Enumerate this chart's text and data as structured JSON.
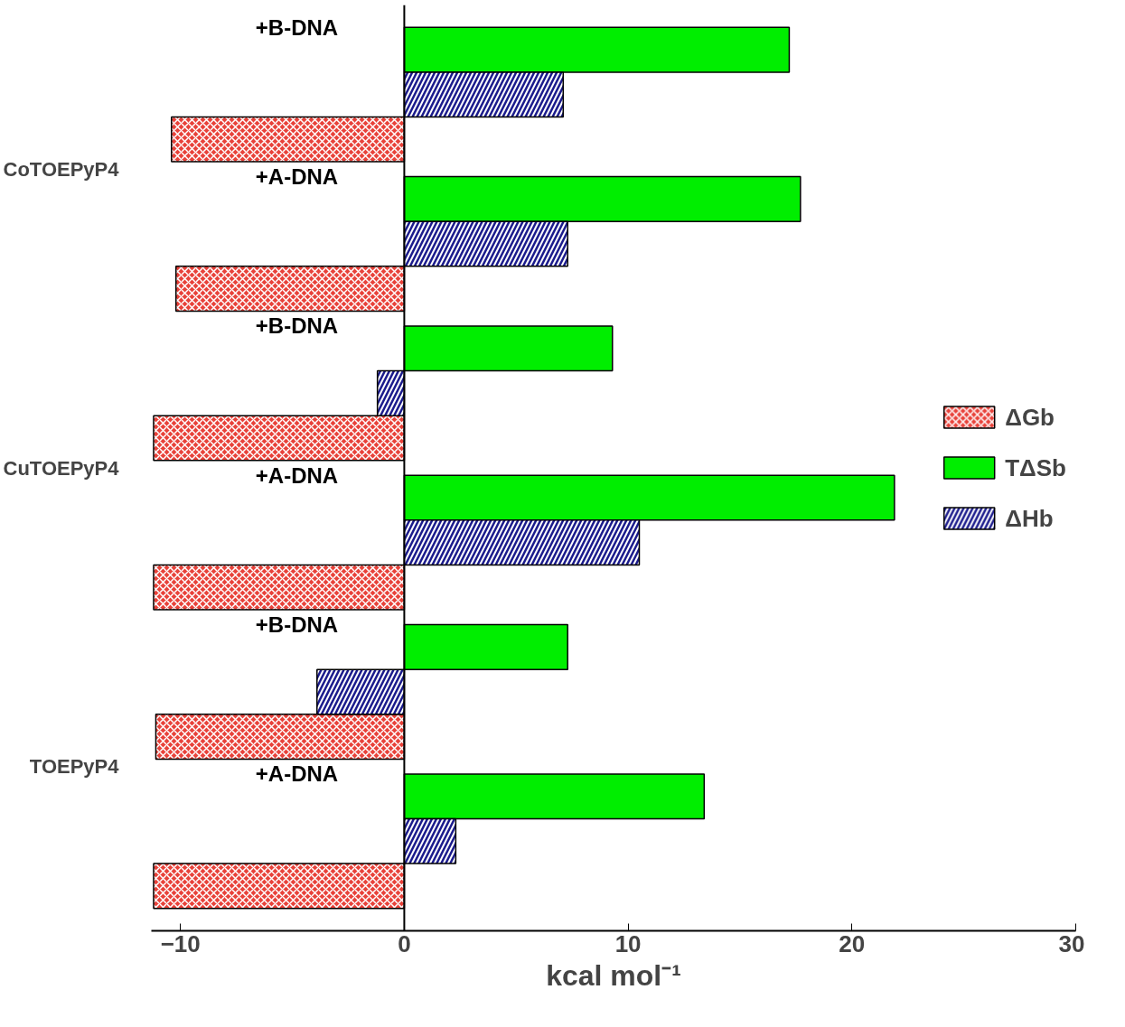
{
  "chart_data": {
    "type": "bar",
    "orientation": "horizontal",
    "xlabel": "kcal mol⁻¹",
    "categories": [
      "+B-DNA",
      "+A-DNA",
      "+B-DNA",
      "+A-DNA",
      "+B-DNA",
      "+A-DNA"
    ],
    "annotations": [
      "CoTOEPyP4",
      "CuTOEPyP4",
      "TOEPyP4"
    ],
    "series": [
      {
        "name": "ΔGb",
        "color": "#e8423a",
        "values": [
          -10.4,
          -10.2,
          -11.2,
          -11.2,
          -11.1,
          -11.2
        ]
      },
      {
        "name": "TΔSb",
        "color": "#00ee00",
        "values": [
          17.2,
          17.7,
          9.3,
          21.9,
          7.3,
          13.4
        ]
      },
      {
        "name": "ΔHb",
        "color": "#1a1a8c",
        "values": [
          7.1,
          7.3,
          -1.2,
          10.5,
          -3.9,
          2.3
        ]
      }
    ],
    "xlim": [
      -11.3,
      30
    ],
    "xticks": [
      -10,
      0,
      10,
      20,
      30
    ],
    "ref_lines": [
      {
        "axis": "x",
        "value": 0,
        "color": "#000000"
      }
    ],
    "grid": false,
    "legend": "right"
  }
}
